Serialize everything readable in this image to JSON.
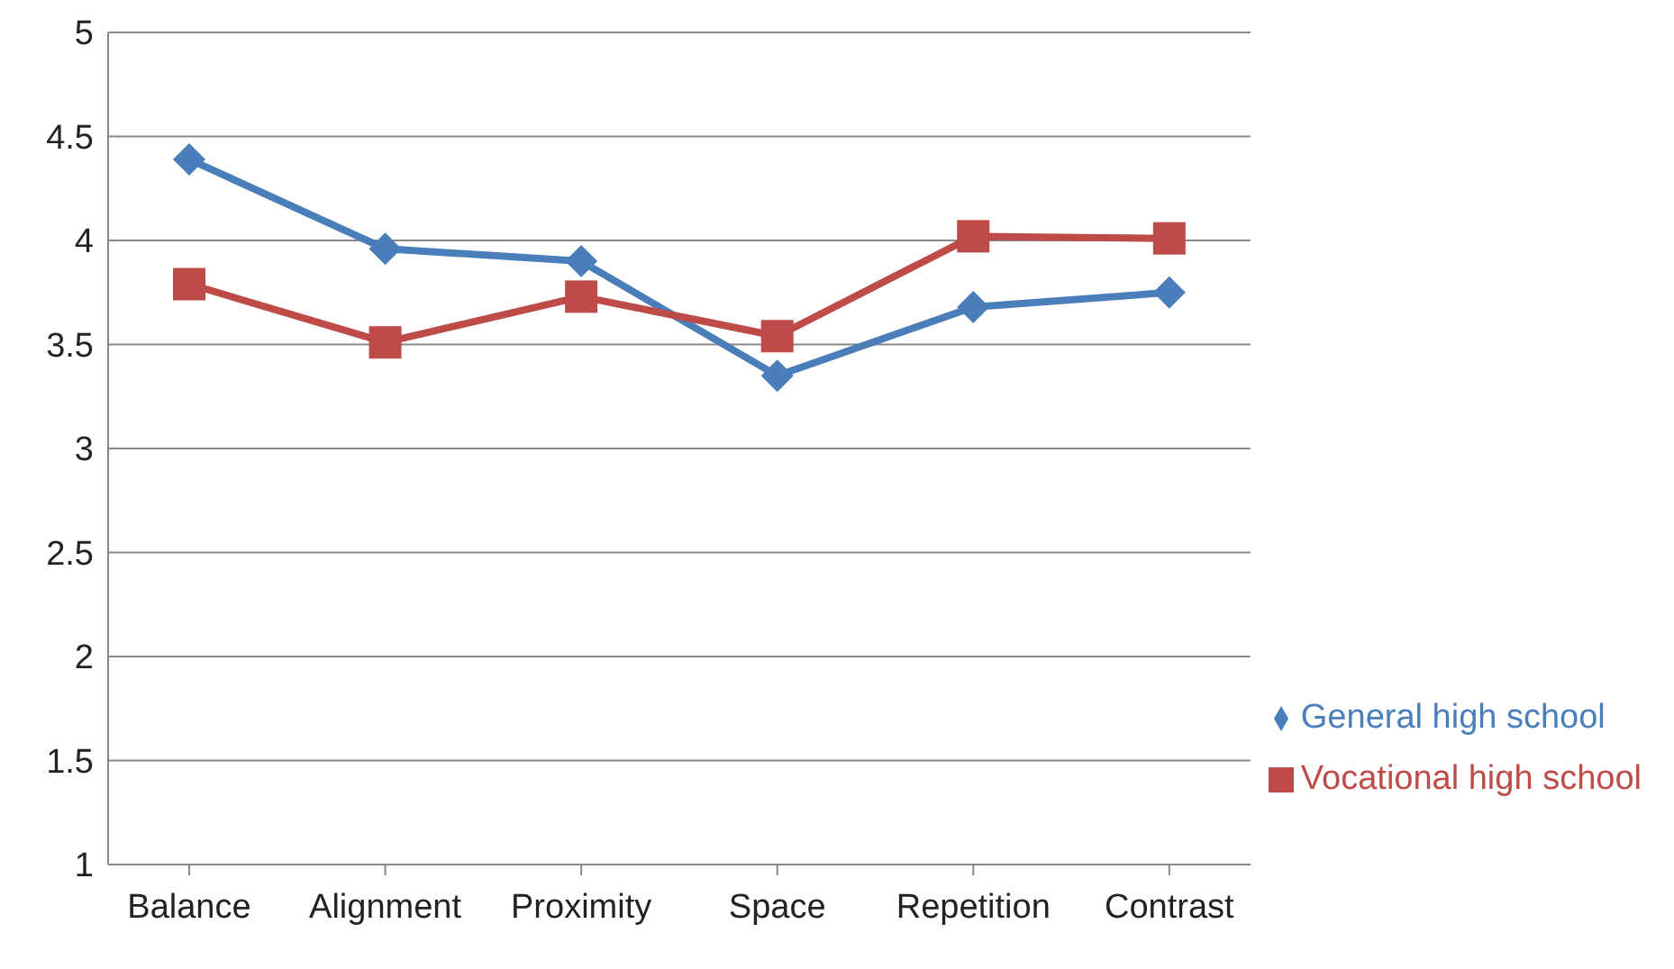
{
  "chart_data": {
    "type": "line",
    "categories": [
      "Balance",
      "Alignment",
      "Proximity",
      "Space",
      "Repetition",
      "Contrast"
    ],
    "series": [
      {
        "name": "General high school",
        "color": "#4a7ebb",
        "marker": "diamond",
        "values": [
          4.39,
          3.96,
          3.9,
          3.35,
          3.68,
          3.75
        ]
      },
      {
        "name": "Vocational high school",
        "color": "#be4b48",
        "marker": "square",
        "values": [
          3.79,
          3.51,
          3.73,
          3.54,
          4.02,
          4.01
        ]
      }
    ],
    "ylim": [
      1,
      5
    ],
    "yticks": [
      1,
      1.5,
      2,
      2.5,
      3,
      3.5,
      4,
      4.5,
      5
    ],
    "grid": "y",
    "legend": "bottom right"
  }
}
